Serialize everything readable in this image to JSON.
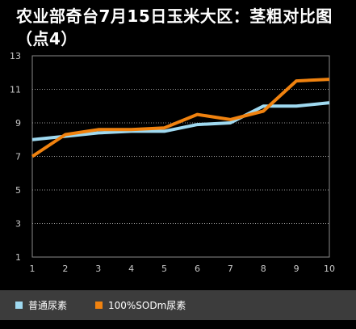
{
  "chart_data": {
    "type": "line",
    "title": "农业部奇台7月15日玉米大区：茎粗对比图（点4）",
    "x": [
      1,
      2,
      3,
      4,
      5,
      6,
      7,
      8,
      9,
      10
    ],
    "xlim": [
      1,
      10
    ],
    "ylim": [
      1,
      13
    ],
    "yticks": [
      1,
      3,
      5,
      7,
      9,
      11,
      13
    ],
    "grid": true,
    "legend_position": "bottom",
    "series": [
      {
        "name": "普通尿素",
        "color": "#9fd9f0",
        "values": [
          8.0,
          8.2,
          8.4,
          8.5,
          8.5,
          8.9,
          9.0,
          10.0,
          10.0,
          10.2
        ]
      },
      {
        "name": "100%SODm尿素",
        "color": "#f0820f",
        "values": [
          7.0,
          8.3,
          8.6,
          8.6,
          8.7,
          9.5,
          9.2,
          9.7,
          11.5,
          11.6
        ]
      }
    ]
  }
}
